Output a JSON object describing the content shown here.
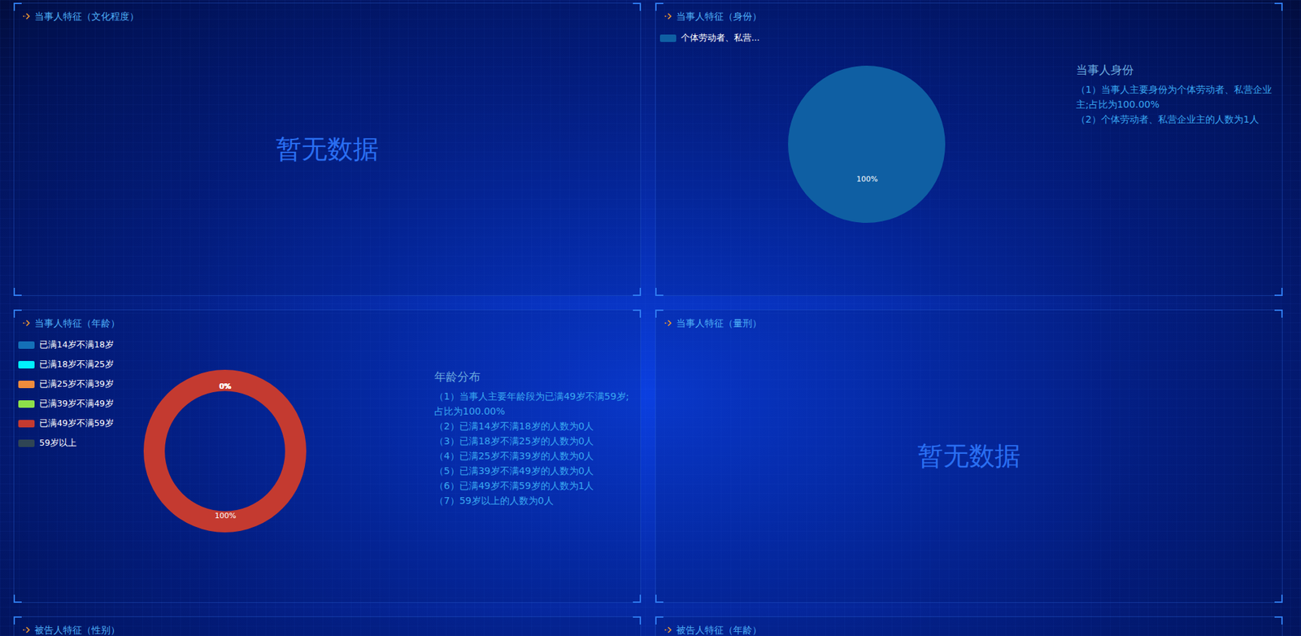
{
  "chart_data": [
    {
      "type": "empty",
      "title": "当事人特征（文化程度）",
      "annotations": [
        "暂无数据"
      ]
    },
    {
      "type": "pie",
      "title": "当事人特征（身份）",
      "categories": [
        "个体劳动者、私营..."
      ],
      "values": [
        100
      ],
      "value_labels": [
        "100%"
      ],
      "colors": [
        "#0f5fa3"
      ],
      "data_labels": true,
      "legend": "top-left",
      "annotations": [
        "当事人身份",
        "（1）当事人主要身份为个体劳动者、私营企业主;占比为100.00%",
        "（2）个体劳动者、私营企业主的人数为1人"
      ]
    },
    {
      "type": "donut",
      "title": "当事人特征（年龄）",
      "categories": [
        "已满14岁不满18岁",
        "已满18岁不满25岁",
        "已满25岁不满39岁",
        "已满39岁不满49岁",
        "已满49岁不满59岁",
        "59岁以上"
      ],
      "values": [
        0,
        0,
        0,
        0,
        100,
        0
      ],
      "value_labels": [
        "0%",
        "0%",
        "0%",
        "0%",
        "100%",
        "0%"
      ],
      "colors": [
        "#1470b8",
        "#00f0ff",
        "#f08c3c",
        "#8de04a",
        "#c43a30",
        "#2f4554"
      ],
      "data_labels": true,
      "legend": "top-left",
      "annotations": [
        "年龄分布",
        "（1）当事人主要年龄段为已满49岁不满59岁;占比为100.00%",
        "（2）已满14岁不满18岁的人数为0人",
        "（3）已满18岁不满25岁的人数为0人",
        "（4）已满25岁不满39岁的人数为0人",
        "（5）已满39岁不满49岁的人数为0人",
        "（6）已满49岁不满59岁的人数为1人",
        "（7）59岁以上的人数为0人"
      ]
    },
    {
      "type": "empty",
      "title": "当事人特征（量刑）",
      "annotations": [
        "暂无数据"
      ]
    },
    {
      "type": "none",
      "title": "被告人特征（性别）"
    },
    {
      "type": "none",
      "title": "被告人特征（年龄）"
    }
  ]
}
